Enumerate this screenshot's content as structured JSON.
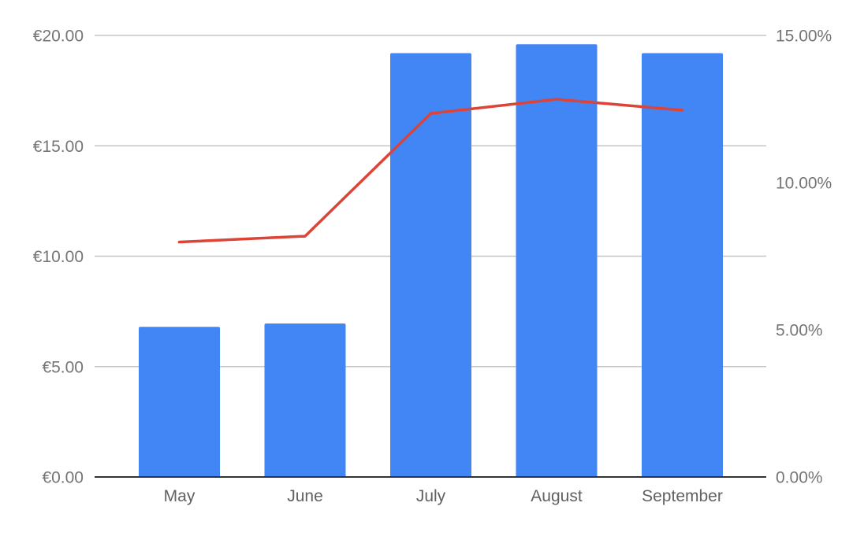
{
  "chart_data": {
    "type": "bar",
    "title": "",
    "xlabel": "",
    "ylabel": "",
    "y2label": "",
    "categories": [
      "May",
      "June",
      "July",
      "August",
      "September"
    ],
    "series": [
      {
        "type": "bar",
        "axis": "left",
        "color": "#4285f4",
        "values": [
          6.8,
          6.95,
          19.2,
          19.6,
          19.2
        ]
      },
      {
        "type": "line",
        "axis": "right",
        "color": "#db4437",
        "values": [
          7.98,
          8.18,
          12.35,
          12.83,
          12.46
        ]
      }
    ],
    "left_axis": {
      "ylim": [
        0,
        20
      ],
      "ticks": [
        0,
        5,
        10,
        15,
        20
      ],
      "tick_labels": [
        "€0.00",
        "€5.00",
        "€10.00",
        "€15.00",
        "€20.00"
      ]
    },
    "right_axis": {
      "ylim": [
        0,
        15
      ],
      "ticks": [
        0,
        5,
        10,
        15
      ],
      "tick_labels": [
        "0.00%",
        "5.00%",
        "10.00%",
        "15.00%"
      ]
    },
    "grid": true,
    "legend": "none"
  }
}
